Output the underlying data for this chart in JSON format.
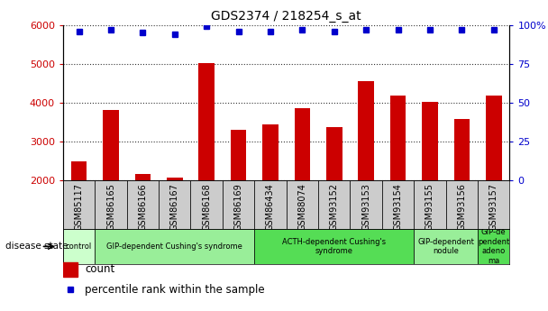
{
  "title": "GDS2374 / 218254_s_at",
  "samples": [
    "GSM85117",
    "GSM86165",
    "GSM86166",
    "GSM86167",
    "GSM86168",
    "GSM86169",
    "GSM86434",
    "GSM88074",
    "GSM93152",
    "GSM93153",
    "GSM93154",
    "GSM93155",
    "GSM93156",
    "GSM93157"
  ],
  "counts": [
    2480,
    3820,
    2170,
    2080,
    5020,
    3300,
    3430,
    3850,
    3360,
    4560,
    4190,
    4010,
    3570,
    4190
  ],
  "percentiles": [
    96,
    97,
    95,
    94,
    99,
    96,
    96,
    97,
    96,
    97,
    97,
    97,
    97,
    97
  ],
  "bar_color": "#cc0000",
  "dot_color": "#0000cc",
  "ylim_left": [
    2000,
    6000
  ],
  "ylim_right": [
    0,
    100
  ],
  "yticks_left": [
    2000,
    3000,
    4000,
    5000,
    6000
  ],
  "yticks_right": [
    0,
    25,
    50,
    75,
    100
  ],
  "disease_groups": [
    {
      "label": "control",
      "start": 0,
      "end": 1,
      "color": "#ccffcc"
    },
    {
      "label": "GIP-dependent Cushing's syndrome",
      "start": 1,
      "end": 6,
      "color": "#99ee99"
    },
    {
      "label": "ACTH-dependent Cushing's\nsyndrome",
      "start": 6,
      "end": 11,
      "color": "#55dd55"
    },
    {
      "label": "GIP-dependent\nnodule",
      "start": 11,
      "end": 13,
      "color": "#99ee99"
    },
    {
      "label": "GIP-de\npendent\nadeno\nma",
      "start": 13,
      "end": 14,
      "color": "#55dd55"
    }
  ],
  "legend_count_color": "#cc0000",
  "legend_dot_color": "#0000cc",
  "xlabel_disease": "disease state",
  "background_color": "#ffffff",
  "plot_bg": "#ffffff",
  "xlabel_bg": "#cccccc",
  "bar_width": 0.5
}
